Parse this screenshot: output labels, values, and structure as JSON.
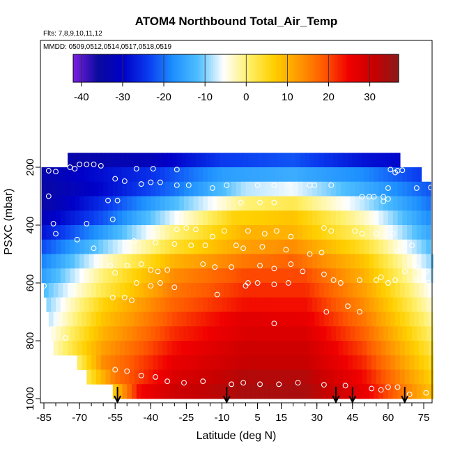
{
  "chart_data": {
    "type": "heatmap",
    "title": "ATOM4 Northbound Total_Air_Temp",
    "subtitle": "Flts: 7,8,9,10,11,12",
    "annotation": "MMDD: 0509,0512,0514,0517,0518,0519",
    "xlabel": "Latitude (deg N)",
    "ylabel": "PSXC (mbar)",
    "xlim": [
      -87,
      83
    ],
    "ylim": [
      1010,
      140
    ],
    "y_reversed": true,
    "x_ticks": [
      -85,
      -70,
      -55,
      -40,
      -25,
      -10,
      5,
      15,
      30,
      45,
      60,
      75
    ],
    "y_ticks": [
      200,
      400,
      600,
      800,
      1000
    ],
    "colorbar": {
      "min": -42,
      "max": 37,
      "ticks": [
        -40,
        -30,
        -20,
        -10,
        0,
        10,
        20,
        30
      ],
      "colors": [
        "#7B1FE0",
        "#0A0A9E",
        "#0000C8",
        "#0A3CF0",
        "#1E90FF",
        "#4FBFFF",
        "#FFFFFF",
        "#FFF06A",
        "#FFD000",
        "#FF9A00",
        "#FF5A00",
        "#F00000",
        "#C80000",
        "#8B1A1A"
      ]
    },
    "level_spacing_mbar": 50,
    "levels_mbar": [
      175,
      225,
      275,
      325,
      375,
      425,
      475,
      525,
      575,
      625,
      675,
      725,
      775,
      825,
      875,
      925,
      975
    ],
    "temperature_profile_deg_c": [
      {
        "plev": 175,
        "temps": [
          [
            -67,
            -34
          ],
          [
            -54,
            -33
          ],
          [
            -40,
            -32
          ],
          [
            -10,
            -24
          ],
          [
            20,
            -22
          ],
          [
            50,
            -28
          ],
          [
            74,
            -30
          ]
        ],
        "lat_start": -75,
        "lat_end": 65
      },
      {
        "plev": 225,
        "temps": [
          [
            -86,
            -34
          ],
          [
            -70,
            -30
          ],
          [
            -40,
            -25
          ],
          [
            -10,
            -16
          ],
          [
            20,
            -14
          ],
          [
            50,
            -18
          ],
          [
            74,
            -24
          ]
        ],
        "lat_start": -86,
        "lat_end": 74
      },
      {
        "plev": 275,
        "temps": [
          [
            -86,
            -35
          ],
          [
            -60,
            -29
          ],
          [
            -30,
            -20
          ],
          [
            0,
            -8
          ],
          [
            20,
            -6
          ],
          [
            50,
            -14
          ],
          [
            78,
            -22
          ]
        ],
        "lat_start": -86,
        "lat_end": 78
      },
      {
        "plev": 325,
        "temps": [
          [
            -86,
            -35
          ],
          [
            -60,
            -25
          ],
          [
            -30,
            -12
          ],
          [
            0,
            0
          ],
          [
            20,
            2
          ],
          [
            50,
            -8
          ],
          [
            78,
            -20
          ]
        ],
        "lat_start": -86,
        "lat_end": 78
      },
      {
        "plev": 375,
        "temps": [
          [
            -86,
            -32
          ],
          [
            -60,
            -22
          ],
          [
            -30,
            -6
          ],
          [
            -5,
            6
          ],
          [
            20,
            8
          ],
          [
            50,
            -3
          ],
          [
            78,
            -18
          ]
        ],
        "lat_start": -86,
        "lat_end": 78
      },
      {
        "plev": 425,
        "temps": [
          [
            -86,
            -28
          ],
          [
            -60,
            -16
          ],
          [
            -30,
            0
          ],
          [
            0,
            10
          ],
          [
            20,
            10
          ],
          [
            50,
            0
          ],
          [
            78,
            -15
          ]
        ],
        "lat_start": -86,
        "lat_end": 78
      },
      {
        "plev": 475,
        "temps": [
          [
            -86,
            -23
          ],
          [
            -60,
            -10
          ],
          [
            -30,
            4
          ],
          [
            0,
            12
          ],
          [
            20,
            14
          ],
          [
            50,
            4
          ],
          [
            78,
            -12
          ]
        ],
        "lat_start": -86,
        "lat_end": 78
      },
      {
        "plev": 525,
        "temps": [
          [
            -86,
            -19
          ],
          [
            -60,
            -4
          ],
          [
            -30,
            10
          ],
          [
            0,
            16
          ],
          [
            20,
            18
          ],
          [
            50,
            8
          ],
          [
            79,
            -10
          ]
        ],
        "lat_start": -86,
        "lat_end": 79
      },
      {
        "plev": 575,
        "temps": [
          [
            -86,
            -16
          ],
          [
            -60,
            0
          ],
          [
            -30,
            14
          ],
          [
            0,
            20
          ],
          [
            25,
            20
          ],
          [
            50,
            10
          ],
          [
            79,
            -8
          ]
        ],
        "lat_start": -86,
        "lat_end": 79
      },
      {
        "plev": 625,
        "temps": [
          [
            -85,
            -12
          ],
          [
            -60,
            2
          ],
          [
            -30,
            16
          ],
          [
            0,
            22
          ],
          [
            25,
            22
          ],
          [
            50,
            12
          ],
          [
            79,
            -6
          ]
        ],
        "lat_start": -85,
        "lat_end": 79
      },
      {
        "plev": 675,
        "temps": [
          [
            -84,
            -10
          ],
          [
            -60,
            6
          ],
          [
            -30,
            18
          ],
          [
            0,
            24
          ],
          [
            25,
            24
          ],
          [
            50,
            14
          ],
          [
            79,
            -4
          ]
        ],
        "lat_start": -84,
        "lat_end": 79
      },
      {
        "plev": 725,
        "temps": [
          [
            -83,
            -8
          ],
          [
            -60,
            8
          ],
          [
            -30,
            20
          ],
          [
            0,
            27
          ],
          [
            25,
            26
          ],
          [
            50,
            16
          ],
          [
            79,
            -2
          ]
        ],
        "lat_start": -83,
        "lat_end": 79
      },
      {
        "plev": 775,
        "temps": [
          [
            -82,
            -5
          ],
          [
            -60,
            10
          ],
          [
            -30,
            22
          ],
          [
            0,
            28
          ],
          [
            25,
            28
          ],
          [
            50,
            18
          ],
          [
            79,
            0
          ]
        ],
        "lat_start": -82,
        "lat_end": 79
      },
      {
        "plev": 825,
        "temps": [
          [
            -81,
            -3
          ],
          [
            -60,
            12
          ],
          [
            -30,
            24
          ],
          [
            0,
            30
          ],
          [
            25,
            30
          ],
          [
            50,
            20
          ],
          [
            79,
            2
          ]
        ],
        "lat_start": -81,
        "lat_end": 79
      },
      {
        "plev": 875,
        "temps": [
          [
            -71,
            0
          ],
          [
            -60,
            14
          ],
          [
            -30,
            26
          ],
          [
            0,
            31
          ],
          [
            25,
            31
          ],
          [
            50,
            22
          ],
          [
            79,
            4
          ]
        ],
        "lat_start": -71,
        "lat_end": 79
      },
      {
        "plev": 925,
        "temps": [
          [
            -67,
            2
          ],
          [
            -55,
            16
          ],
          [
            -30,
            28
          ],
          [
            0,
            33
          ],
          [
            25,
            33
          ],
          [
            50,
            24
          ],
          [
            79,
            6
          ]
        ],
        "lat_start": -67,
        "lat_end": 79
      },
      {
        "plev": 975,
        "temps": [
          [
            -56,
            6
          ],
          [
            -45,
            24
          ],
          [
            -30,
            30
          ],
          [
            0,
            34
          ],
          [
            25,
            34
          ],
          [
            50,
            26
          ],
          [
            79,
            8
          ]
        ],
        "lat_start": -56,
        "lat_end": 79
      }
    ],
    "observation_points": [
      [
        -83,
        212
      ],
      [
        -80,
        215
      ],
      [
        -74,
        200
      ],
      [
        -72,
        205
      ],
      [
        -70,
        190
      ],
      [
        -67,
        190
      ],
      [
        -64,
        190
      ],
      [
        -61,
        195
      ],
      [
        -46,
        205
      ],
      [
        -39,
        205
      ],
      [
        -29,
        208
      ],
      [
        -55,
        240
      ],
      [
        -51,
        248
      ],
      [
        -44,
        258
      ],
      [
        -40,
        252
      ],
      [
        -36,
        252
      ],
      [
        -29,
        262
      ],
      [
        -24,
        262
      ],
      [
        -14,
        272
      ],
      [
        -8,
        262
      ],
      [
        5,
        262
      ],
      [
        12,
        262
      ],
      [
        18,
        262
      ],
      [
        27,
        262
      ],
      [
        29,
        262
      ],
      [
        36,
        262
      ],
      [
        61,
        208
      ],
      [
        64,
        212
      ],
      [
        66,
        210
      ],
      [
        63,
        218
      ],
      [
        72,
        272
      ],
      [
        78,
        270
      ],
      [
        60,
        272
      ],
      [
        -58,
        315
      ],
      [
        -54,
        315
      ],
      [
        -2,
        322
      ],
      [
        6,
        322
      ],
      [
        12,
        322
      ],
      [
        42,
        320
      ],
      [
        49,
        302
      ],
      [
        52,
        302
      ],
      [
        54,
        302
      ],
      [
        58,
        302
      ],
      [
        60,
        310
      ],
      [
        58,
        318
      ],
      [
        -83,
        300
      ],
      [
        -81,
        395
      ],
      [
        -67,
        395
      ],
      [
        -56,
        380
      ],
      [
        -29,
        415
      ],
      [
        -25,
        410
      ],
      [
        -21,
        415
      ],
      [
        -14,
        440
      ],
      [
        -9,
        420
      ],
      [
        1,
        420
      ],
      [
        8,
        430
      ],
      [
        13,
        420
      ],
      [
        19,
        440
      ],
      [
        33,
        410
      ],
      [
        36,
        420
      ],
      [
        46,
        420
      ],
      [
        -80,
        430
      ],
      [
        -71,
        450
      ],
      [
        -64,
        480
      ],
      [
        -47,
        455
      ],
      [
        -38,
        460
      ],
      [
        -30,
        465
      ],
      [
        -23,
        470
      ],
      [
        -17,
        470
      ],
      [
        -4,
        470
      ],
      [
        -1,
        480
      ],
      [
        7,
        475
      ],
      [
        17,
        485
      ],
      [
        27,
        500
      ],
      [
        32,
        495
      ],
      [
        49,
        430
      ],
      [
        55,
        430
      ],
      [
        62,
        430
      ],
      [
        64,
        490
      ],
      [
        70,
        470
      ],
      [
        -57,
        540
      ],
      [
        -55,
        565
      ],
      [
        -50,
        540
      ],
      [
        -44,
        535
      ],
      [
        -40,
        555
      ],
      [
        -37,
        560
      ],
      [
        -33,
        555
      ],
      [
        -18,
        535
      ],
      [
        -13,
        545
      ],
      [
        -6,
        545
      ],
      [
        6,
        540
      ],
      [
        12,
        550
      ],
      [
        19,
        535
      ],
      [
        24,
        560
      ],
      [
        33,
        570
      ],
      [
        37,
        590
      ],
      [
        57,
        580
      ],
      [
        60,
        600
      ],
      [
        63,
        590
      ],
      [
        67,
        560
      ],
      [
        72,
        545
      ],
      [
        76,
        560
      ],
      [
        -85,
        610
      ],
      [
        -46,
        600
      ],
      [
        -40,
        610
      ],
      [
        -36,
        600
      ],
      [
        -30,
        615
      ],
      [
        -12,
        640
      ],
      [
        0,
        610
      ],
      [
        1,
        600
      ],
      [
        5,
        600
      ],
      [
        12,
        605
      ],
      [
        18,
        600
      ],
      [
        40,
        600
      ],
      [
        48,
        590
      ],
      [
        55,
        590
      ],
      [
        60,
        600
      ],
      [
        72,
        590
      ],
      [
        77,
        600
      ],
      [
        -76,
        790
      ],
      [
        -55,
        900
      ],
      [
        -50,
        905
      ],
      [
        -44,
        920
      ],
      [
        -38,
        925
      ],
      [
        -33,
        940
      ],
      [
        -26,
        945
      ],
      [
        -18,
        940
      ],
      [
        -6,
        950
      ],
      [
        -1,
        945
      ],
      [
        6,
        950
      ],
      [
        14,
        950
      ],
      [
        22,
        945
      ],
      [
        33,
        952
      ],
      [
        42,
        955
      ],
      [
        53,
        965
      ],
      [
        57,
        970
      ],
      [
        60,
        960
      ],
      [
        64,
        960
      ],
      [
        69,
        985
      ],
      [
        76,
        980
      ],
      [
        -56,
        650
      ],
      [
        -51,
        650
      ],
      [
        -48,
        660
      ],
      [
        34,
        700
      ],
      [
        43,
        680
      ],
      [
        48,
        700
      ],
      [
        12,
        740
      ]
    ],
    "profile_markers_lat": [
      -54,
      -8,
      38,
      45,
      67
    ]
  }
}
